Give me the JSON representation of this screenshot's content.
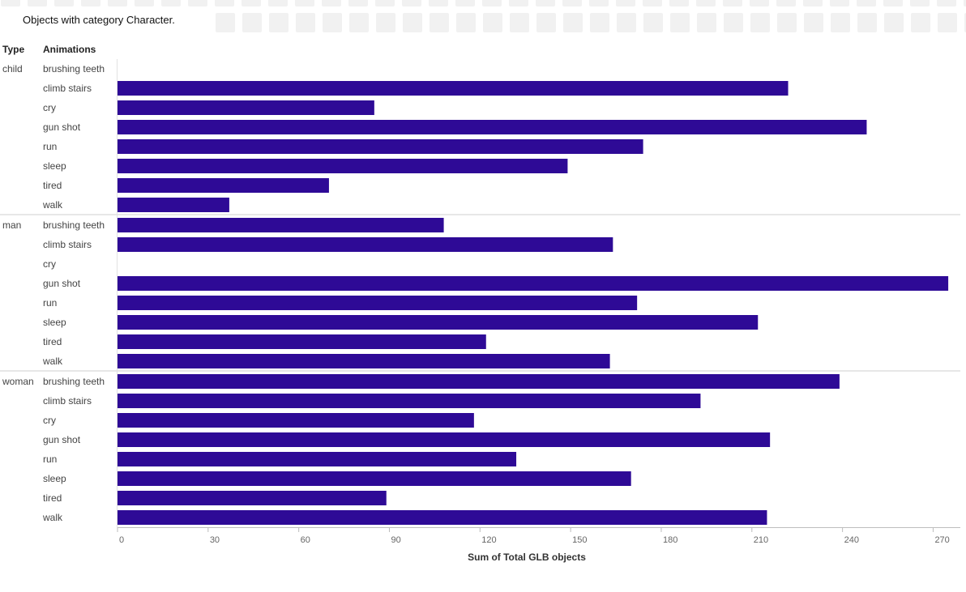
{
  "subtitle": "Objects with category Character.",
  "chart_data": {
    "type": "bar",
    "orientation": "horizontal",
    "title": "",
    "row_headers": [
      "Type",
      "Animations"
    ],
    "xlabel": "Sum of Total GLB objects",
    "xlim": [
      0,
      279
    ],
    "xticks": [
      0,
      30,
      60,
      90,
      120,
      150,
      180,
      210,
      240,
      270
    ],
    "bar_color": "#2e0a96",
    "groups": [
      {
        "name": "child",
        "categories": [
          "brushing teeth",
          "climb stairs",
          "cry",
          "gun shot",
          "run",
          "sleep",
          "tired",
          "walk"
        ],
        "values": [
          0,
          222,
          85,
          248,
          174,
          149,
          70,
          37
        ]
      },
      {
        "name": "man",
        "categories": [
          "brushing teeth",
          "climb stairs",
          "cry",
          "gun shot",
          "run",
          "sleep",
          "tired",
          "walk"
        ],
        "values": [
          108,
          164,
          0,
          275,
          172,
          212,
          122,
          163
        ]
      },
      {
        "name": "woman",
        "categories": [
          "brushing teeth",
          "climb stairs",
          "cry",
          "gun shot",
          "run",
          "sleep",
          "tired",
          "walk"
        ],
        "values": [
          239,
          193,
          118,
          216,
          132,
          170,
          89,
          215
        ]
      }
    ]
  }
}
